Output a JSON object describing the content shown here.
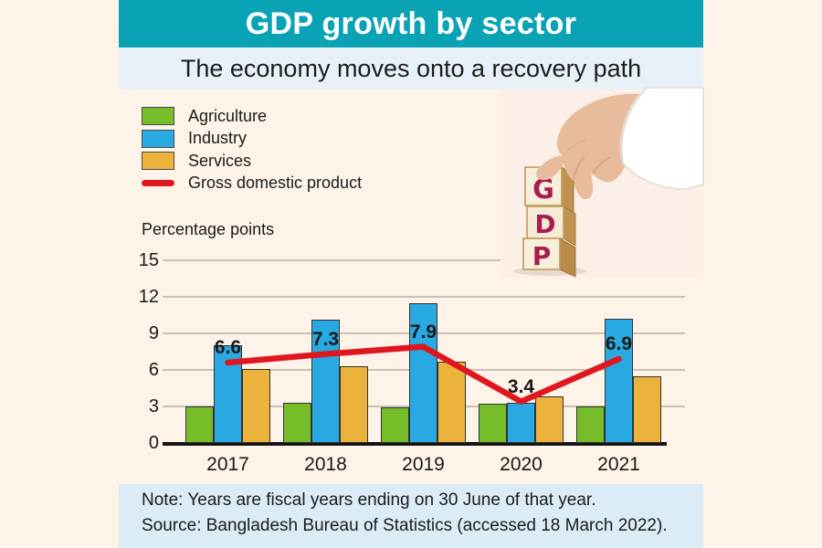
{
  "title": "GDP growth by sector",
  "subtitle": "The economy moves onto a recovery path",
  "axis_unit_label": "Percentage points",
  "footer": {
    "note": "Note: Years are fiscal years ending on 30 June of that year.",
    "source": "Source: Bangladesh Bureau of Statistics (accessed 18 March 2022)."
  },
  "blocks": {
    "letters": [
      "G",
      "D",
      "P"
    ]
  },
  "colors": {
    "header_teal": "#0aa3b5",
    "subtitle_bg": "#e8f1f8",
    "page_bg": "#fdf3e8",
    "footer_bg": "#dbecf6",
    "agriculture": "#77bd2a",
    "industry": "#29a9e1",
    "services": "#ebb33c",
    "gdp_line": "#e0161f",
    "gridline": "#c9c2b7",
    "block_letter": "#a81e4e"
  },
  "chart_data": {
    "type": "bar",
    "title": "GDP growth by sector",
    "categories": [
      "2017",
      "2018",
      "2019",
      "2020",
      "2021"
    ],
    "series": [
      {
        "name": "Agriculture",
        "color": "#77bd2a",
        "values": [
          3.0,
          3.3,
          2.9,
          3.2,
          3.0
        ]
      },
      {
        "name": "Industry",
        "color": "#29a9e1",
        "values": [
          8.0,
          10.1,
          11.5,
          3.3,
          10.2
        ]
      },
      {
        "name": "Services",
        "color": "#ebb33c",
        "values": [
          6.1,
          6.3,
          6.7,
          3.8,
          5.5
        ]
      }
    ],
    "line": {
      "name": "Gross domestic product",
      "color": "#e0161f",
      "values": [
        6.6,
        7.3,
        7.9,
        3.4,
        6.9
      ],
      "labels": [
        "6.6",
        "7.3",
        "7.9",
        "3.4",
        "6.9"
      ]
    },
    "ylabel": "Percentage points",
    "ylim": [
      0,
      15
    ],
    "yticks": [
      15,
      12,
      9,
      6,
      3,
      0
    ],
    "grid": true,
    "legend_position": "top-left"
  }
}
